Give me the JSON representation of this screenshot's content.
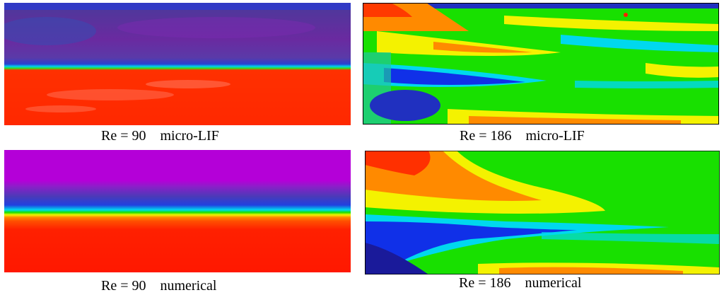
{
  "panels": [
    {
      "caption": "Re = 90    micro-LIF"
    },
    {
      "caption": "Re = 186    micro-LIF"
    },
    {
      "caption": "Re = 90    numerical"
    },
    {
      "caption": "Re = 186    numerical"
    }
  ],
  "colors": {
    "red": "#ff2a00",
    "orange": "#ff8a00",
    "yellow": "#f4f200",
    "green": "#18e000",
    "cyan": "#00d8ee",
    "blue": "#1030e8",
    "navy": "#1a1a9a",
    "purple": "#6a2aa8",
    "magenta": "#b400d8"
  }
}
